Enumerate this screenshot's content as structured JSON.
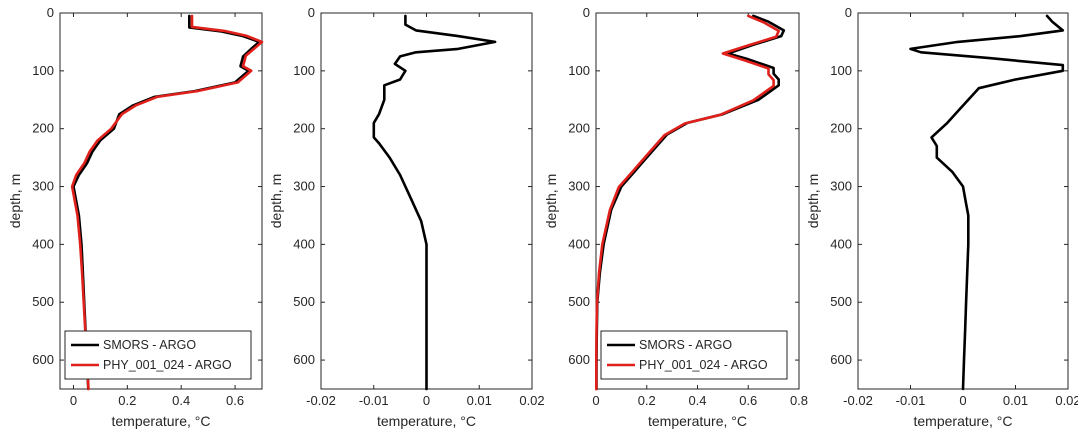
{
  "figure": {
    "panels": [
      {
        "title": "",
        "xlabel": "temperature, °C",
        "ylabel": "depth, m"
      },
      {
        "title": "",
        "xlabel": "temperature, °C",
        "ylabel": "depth, m"
      },
      {
        "title": "",
        "xlabel": "temperature, °C",
        "ylabel": "depth, m"
      },
      {
        "title": "",
        "xlabel": "temperature, °C",
        "ylabel": "depth, m"
      }
    ]
  },
  "chart_data": [
    {
      "type": "line",
      "xlabel": "temperature, °C",
      "ylabel": "depth, m",
      "xlim": [
        -0.05,
        0.7
      ],
      "ylim": [
        0,
        650
      ],
      "y_reversed": true,
      "xticks": [
        0,
        0.2,
        0.4,
        0.6
      ],
      "xtick_labels": [
        "0",
        "0.2",
        "0.4",
        "0.6"
      ],
      "yticks": [
        0,
        100,
        200,
        300,
        400,
        500,
        600
      ],
      "ytick_labels": [
        "0",
        "100",
        "200",
        "300",
        "400",
        "500",
        "600"
      ],
      "legend": {
        "location": "bottom"
      },
      "series": [
        {
          "name": "SMORS - ARGO",
          "color": "#000000",
          "points": [
            [
              0.43,
              5
            ],
            [
              0.43,
              25
            ],
            [
              0.55,
              32
            ],
            [
              0.63,
              40
            ],
            [
              0.69,
              50
            ],
            [
              0.66,
              62
            ],
            [
              0.63,
              75
            ],
            [
              0.62,
              92
            ],
            [
              0.65,
              100
            ],
            [
              0.6,
              120
            ],
            [
              0.45,
              135
            ],
            [
              0.3,
              145
            ],
            [
              0.22,
              160
            ],
            [
              0.17,
              175
            ],
            [
              0.15,
              200
            ],
            [
              0.1,
              220
            ],
            [
              0.07,
              240
            ],
            [
              0.05,
              260
            ],
            [
              0.02,
              280
            ],
            [
              0.0,
              300
            ],
            [
              0.02,
              350
            ],
            [
              0.03,
              400
            ],
            [
              0.035,
              450
            ],
            [
              0.04,
              500
            ],
            [
              0.045,
              550
            ],
            [
              0.05,
              600
            ],
            [
              0.055,
              650
            ]
          ]
        },
        {
          "name": "PHY_001_024 - ARGO",
          "color": "#e0201b",
          "points": [
            [
              0.44,
              5
            ],
            [
              0.44,
              24
            ],
            [
              0.56,
              31
            ],
            [
              0.64,
              39
            ],
            [
              0.7,
              50
            ],
            [
              0.67,
              62
            ],
            [
              0.64,
              74
            ],
            [
              0.63,
              92
            ],
            [
              0.66,
              100
            ],
            [
              0.61,
              120
            ],
            [
              0.46,
              135
            ],
            [
              0.31,
              145
            ],
            [
              0.23,
              160
            ],
            [
              0.18,
              175
            ],
            [
              0.14,
              200
            ],
            [
              0.09,
              220
            ],
            [
              0.06,
              240
            ],
            [
              0.04,
              260
            ],
            [
              0.01,
              280
            ],
            [
              -0.005,
              300
            ],
            [
              0.015,
              350
            ],
            [
              0.025,
              400
            ],
            [
              0.032,
              450
            ],
            [
              0.038,
              500
            ],
            [
              0.044,
              550
            ],
            [
              0.05,
              600
            ],
            [
              0.056,
              650
            ]
          ]
        }
      ]
    },
    {
      "type": "line",
      "xlabel": "temperature, °C",
      "ylabel": "depth, m",
      "xlim": [
        -0.02,
        0.02
      ],
      "ylim": [
        0,
        650
      ],
      "y_reversed": true,
      "xticks": [
        -0.02,
        -0.01,
        0,
        0.01,
        0.02
      ],
      "xtick_labels": [
        "-0.02",
        "-0.01",
        "0",
        "0.01",
        "0.02"
      ],
      "yticks": [
        0,
        100,
        200,
        300,
        400,
        500,
        600
      ],
      "ytick_labels": [
        "0",
        "100",
        "200",
        "300",
        "400",
        "500",
        "600"
      ],
      "series": [
        {
          "name": "",
          "color": "#000000",
          "points": [
            [
              -0.004,
              5
            ],
            [
              -0.004,
              20
            ],
            [
              -0.002,
              30
            ],
            [
              0.006,
              40
            ],
            [
              0.013,
              50
            ],
            [
              0.006,
              62
            ],
            [
              -0.002,
              68
            ],
            [
              -0.005,
              75
            ],
            [
              -0.006,
              88
            ],
            [
              -0.004,
              100
            ],
            [
              -0.005,
              115
            ],
            [
              -0.008,
              125
            ],
            [
              -0.008,
              150
            ],
            [
              -0.009,
              175
            ],
            [
              -0.01,
              190
            ],
            [
              -0.01,
              215
            ],
            [
              -0.009,
              225
            ],
            [
              -0.007,
              250
            ],
            [
              -0.005,
              280
            ],
            [
              -0.003,
              320
            ],
            [
              -0.001,
              360
            ],
            [
              0,
              400
            ],
            [
              0,
              450
            ],
            [
              0,
              500
            ],
            [
              0,
              550
            ],
            [
              0,
              600
            ],
            [
              0,
              650
            ]
          ]
        }
      ]
    },
    {
      "type": "line",
      "xlabel": "temperature, °C",
      "ylabel": "depth, m",
      "xlim": [
        0,
        0.8
      ],
      "ylim": [
        0,
        650
      ],
      "y_reversed": true,
      "xticks": [
        0,
        0.2,
        0.4,
        0.6,
        0.8
      ],
      "xtick_labels": [
        "0",
        "0.2",
        "0.4",
        "0.6",
        "0.8"
      ],
      "yticks": [
        0,
        100,
        200,
        300,
        400,
        500,
        600
      ],
      "ytick_labels": [
        "0",
        "100",
        "200",
        "300",
        "400",
        "500",
        "600"
      ],
      "legend": {
        "location": "bottom"
      },
      "series": [
        {
          "name": "SMORS - ARGO",
          "color": "#000000",
          "points": [
            [
              0.62,
              5
            ],
            [
              0.68,
              15
            ],
            [
              0.74,
              30
            ],
            [
              0.73,
              40
            ],
            [
              0.62,
              55
            ],
            [
              0.52,
              70
            ],
            [
              0.6,
              80
            ],
            [
              0.7,
              95
            ],
            [
              0.7,
              105
            ],
            [
              0.72,
              115
            ],
            [
              0.72,
              125
            ],
            [
              0.64,
              150
            ],
            [
              0.5,
              175
            ],
            [
              0.36,
              190
            ],
            [
              0.28,
              210
            ],
            [
              0.22,
              240
            ],
            [
              0.16,
              270
            ],
            [
              0.1,
              300
            ],
            [
              0.06,
              340
            ],
            [
              0.03,
              400
            ],
            [
              0.015,
              450
            ],
            [
              0.005,
              500
            ],
            [
              0.003,
              550
            ],
            [
              0.002,
              600
            ],
            [
              0.002,
              650
            ]
          ]
        },
        {
          "name": "PHY_001_024 - ARGO",
          "color": "#e0201b",
          "points": [
            [
              0.6,
              5
            ],
            [
              0.66,
              16
            ],
            [
              0.72,
              31
            ],
            [
              0.71,
              41
            ],
            [
              0.6,
              56
            ],
            [
              0.5,
              70
            ],
            [
              0.58,
              81
            ],
            [
              0.68,
              96
            ],
            [
              0.68,
              106
            ],
            [
              0.7,
              116
            ],
            [
              0.7,
              126
            ],
            [
              0.62,
              151
            ],
            [
              0.49,
              176
            ],
            [
              0.35,
              191
            ],
            [
              0.27,
              211
            ],
            [
              0.21,
              241
            ],
            [
              0.15,
              271
            ],
            [
              0.09,
              301
            ],
            [
              0.055,
              340
            ],
            [
              0.025,
              400
            ],
            [
              0.012,
              450
            ],
            [
              0.004,
              500
            ],
            [
              0.002,
              550
            ],
            [
              0.001,
              600
            ],
            [
              0.001,
              650
            ]
          ]
        }
      ]
    },
    {
      "type": "line",
      "xlabel": "temperature, °C",
      "ylabel": "depth, m",
      "xlim": [
        -0.02,
        0.02
      ],
      "ylim": [
        0,
        650
      ],
      "y_reversed": true,
      "xticks": [
        -0.02,
        -0.01,
        0,
        0.01,
        0.02
      ],
      "xtick_labels": [
        "-0.02",
        "-0.01",
        "0",
        "0.01",
        "0.02"
      ],
      "yticks": [
        0,
        100,
        200,
        300,
        400,
        500,
        600
      ],
      "ytick_labels": [
        "0",
        "100",
        "200",
        "300",
        "400",
        "500",
        "600"
      ],
      "series": [
        {
          "name": "",
          "color": "#000000",
          "points": [
            [
              0.016,
              5
            ],
            [
              0.017,
              15
            ],
            [
              0.019,
              30
            ],
            [
              0.011,
              40
            ],
            [
              -0.001,
              50
            ],
            [
              -0.01,
              62
            ],
            [
              -0.008,
              68
            ],
            [
              0.005,
              78
            ],
            [
              0.019,
              90
            ],
            [
              0.019,
              100
            ],
            [
              0.01,
              115
            ],
            [
              0.003,
              130
            ],
            [
              0.001,
              150
            ],
            [
              -0.001,
              170
            ],
            [
              -0.003,
              190
            ],
            [
              -0.006,
              215
            ],
            [
              -0.005,
              230
            ],
            [
              -0.005,
              250
            ],
            [
              -0.002,
              275
            ],
            [
              0.0,
              300
            ],
            [
              0.0005,
              325
            ],
            [
              0.001,
              350
            ],
            [
              0.001,
              400
            ],
            [
              0.0008,
              450
            ],
            [
              0.0006,
              500
            ],
            [
              0.0004,
              550
            ],
            [
              0.0002,
              600
            ],
            [
              0.0,
              650
            ]
          ]
        }
      ]
    }
  ]
}
